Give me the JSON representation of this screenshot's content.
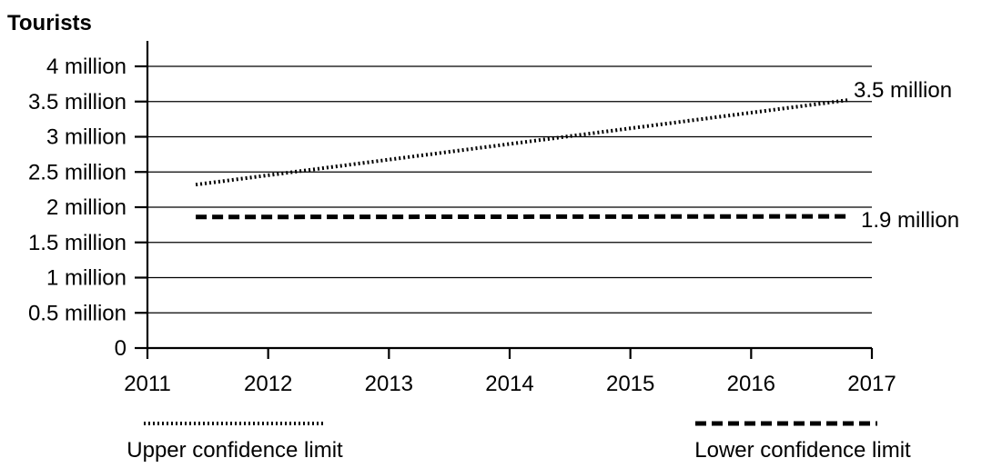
{
  "chart_data": {
    "type": "line",
    "title": "Tourists",
    "xlabel": "",
    "ylabel": "Tourists",
    "xlim": [
      2011,
      2017
    ],
    "ylim": [
      0,
      4
    ],
    "x_ticks": [
      "2011",
      "2012",
      "2013",
      "2014",
      "2015",
      "2016",
      "2017"
    ],
    "y_ticks": [
      "0",
      "0.5 million",
      "1 million",
      "1.5 million",
      "2 million",
      "2.5 million",
      "3 million",
      "3.5 million",
      "4 million"
    ],
    "grid": true,
    "series": [
      {
        "name": "Upper confidence limit",
        "style": "dotted",
        "x": [
          2011.4,
          2016.8
        ],
        "values": [
          2.32,
          3.52
        ]
      },
      {
        "name": "Lower confidence limit",
        "style": "dashed",
        "x": [
          2011.4,
          2016.8
        ],
        "values": [
          1.86,
          1.87
        ]
      }
    ],
    "annotations": [
      "3.5 million",
      "1.9 million"
    ],
    "legend_position": "bottom",
    "colors": {
      "line": "#000000",
      "background": "#ffffff"
    }
  }
}
